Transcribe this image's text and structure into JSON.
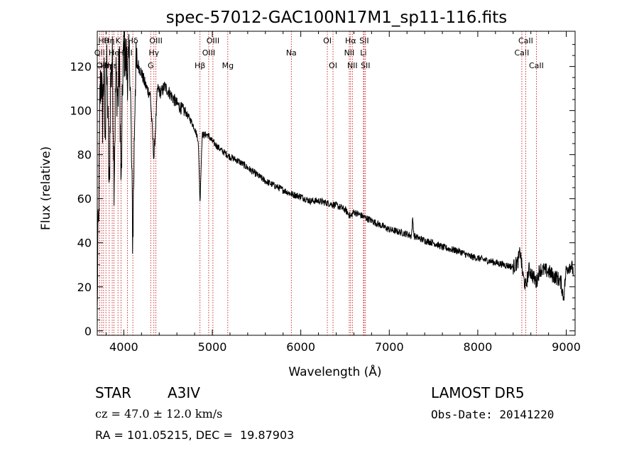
{
  "chart_data": {
    "type": "line",
    "title": "spec-57012-GAC100N17M1_sp11-116.fits",
    "xlabel": "Wavelength (Å)",
    "ylabel": "Flux (relative)",
    "xlim": [
      3700,
      9100
    ],
    "ylim": [
      -2,
      136
    ],
    "xticks": [
      4000,
      5000,
      6000,
      7000,
      8000,
      9000
    ],
    "yticks": [
      0,
      20,
      40,
      60,
      80,
      100,
      120
    ],
    "line_color": "#000000",
    "marker_color": "#c00000",
    "spectrum_anchors": [
      [
        3700,
        5
      ],
      [
        3705,
        36
      ],
      [
        3715,
        48
      ],
      [
        3730,
        105
      ],
      [
        3745,
        118
      ],
      [
        3760,
        96
      ],
      [
        3775,
        120
      ],
      [
        3790,
        82
      ],
      [
        3800,
        128
      ],
      [
        3820,
        100
      ],
      [
        3835,
        58
      ],
      [
        3850,
        112
      ],
      [
        3870,
        124
      ],
      [
        3890,
        68
      ],
      [
        3910,
        116
      ],
      [
        3935,
        105
      ],
      [
        3950,
        124
      ],
      [
        3970,
        62
      ],
      [
        3990,
        122
      ],
      [
        4010,
        128
      ],
      [
        4040,
        118
      ],
      [
        4070,
        123
      ],
      [
        4101,
        40
      ],
      [
        4130,
        117
      ],
      [
        4160,
        121
      ],
      [
        4200,
        117
      ],
      [
        4250,
        111
      ],
      [
        4300,
        107
      ],
      [
        4340,
        78
      ],
      [
        4380,
        110
      ],
      [
        4420,
        108
      ],
      [
        4460,
        111
      ],
      [
        4500,
        109
      ],
      [
        4550,
        106
      ],
      [
        4600,
        103
      ],
      [
        4650,
        101
      ],
      [
        4700,
        99
      ],
      [
        4750,
        96
      ],
      [
        4800,
        92
      ],
      [
        4840,
        87
      ],
      [
        4855,
        68
      ],
      [
        4861,
        58
      ],
      [
        4870,
        70
      ],
      [
        4885,
        89
      ],
      [
        4950,
        89
      ],
      [
        5000,
        86
      ],
      [
        5100,
        82
      ],
      [
        5200,
        79
      ],
      [
        5300,
        77
      ],
      [
        5400,
        74
      ],
      [
        5500,
        71
      ],
      [
        5600,
        68
      ],
      [
        5700,
        66
      ],
      [
        5800,
        64
      ],
      [
        5900,
        62
      ],
      [
        6000,
        61
      ],
      [
        6100,
        59
      ],
      [
        6200,
        59
      ],
      [
        6300,
        58
      ],
      [
        6400,
        57
      ],
      [
        6500,
        55
      ],
      [
        6563,
        52
      ],
      [
        6600,
        54
      ],
      [
        6700,
        52
      ],
      [
        6800,
        50
      ],
      [
        6900,
        48
      ],
      [
        7000,
        46
      ],
      [
        7100,
        45
      ],
      [
        7200,
        44
      ],
      [
        7250,
        43
      ],
      [
        7265,
        51
      ],
      [
        7280,
        43
      ],
      [
        7400,
        41
      ],
      [
        7500,
        40
      ],
      [
        7600,
        38
      ],
      [
        7700,
        37
      ],
      [
        7800,
        36
      ],
      [
        7900,
        34
      ],
      [
        8000,
        33
      ],
      [
        8100,
        32
      ],
      [
        8200,
        31
      ],
      [
        8300,
        30
      ],
      [
        8400,
        29
      ],
      [
        8450,
        31
      ],
      [
        8480,
        36
      ],
      [
        8510,
        25
      ],
      [
        8542,
        20
      ],
      [
        8580,
        28
      ],
      [
        8662,
        22
      ],
      [
        8700,
        28
      ],
      [
        8800,
        27
      ],
      [
        8850,
        25
      ],
      [
        8900,
        24
      ],
      [
        8940,
        22
      ],
      [
        8970,
        15
      ],
      [
        9000,
        28
      ],
      [
        9050,
        30
      ],
      [
        9100,
        25
      ]
    ],
    "line_markers": [
      {
        "wavelength": 3727,
        "row": 1,
        "label": "OII"
      },
      {
        "wavelength": 3750,
        "row": 2,
        "label": "OII"
      },
      {
        "wavelength": 3771,
        "row": 0,
        "label": "Hθ"
      },
      {
        "wavelength": 3798,
        "row": 2,
        "label": "Hη"
      },
      {
        "wavelength": 3835,
        "row": 0,
        "label": "Hη"
      },
      {
        "wavelength": 3869,
        "row": 2,
        "label": "Hε"
      },
      {
        "wavelength": 3889,
        "row": 1,
        "label": "He"
      },
      {
        "wavelength": 3934,
        "row": 0,
        "label": "K"
      },
      {
        "wavelength": 3969,
        "row": 1,
        "label": "H"
      },
      {
        "wavelength": 4040,
        "row": 1,
        "label": "NII"
      },
      {
        "wavelength": 4102,
        "row": 0,
        "label": "Hδ"
      },
      {
        "wavelength": 4304,
        "row": 2,
        "label": "G"
      },
      {
        "wavelength": 4340,
        "row": 1,
        "label": "Hγ"
      },
      {
        "wavelength": 4363,
        "row": 0,
        "label": "OIII"
      },
      {
        "wavelength": 4861,
        "row": 2,
        "label": "Hβ"
      },
      {
        "wavelength": 4959,
        "row": 1,
        "label": "OIII"
      },
      {
        "wavelength": 5007,
        "row": 0,
        "label": "OIII"
      },
      {
        "wavelength": 5175,
        "row": 2,
        "label": "Mg"
      },
      {
        "wavelength": 5893,
        "row": 1,
        "label": "Na"
      },
      {
        "wavelength": 6300,
        "row": 0,
        "label": "OI"
      },
      {
        "wavelength": 6364,
        "row": 2,
        "label": "OI"
      },
      {
        "wavelength": 6548,
        "row": 1,
        "label": "NII"
      },
      {
        "wavelength": 6563,
        "row": 0,
        "label": "Hα"
      },
      {
        "wavelength": 6583,
        "row": 2,
        "label": "NII"
      },
      {
        "wavelength": 6708,
        "row": 1,
        "label": "Li"
      },
      {
        "wavelength": 6716,
        "row": 0,
        "label": "SII"
      },
      {
        "wavelength": 6731,
        "row": 2,
        "label": "SII"
      },
      {
        "wavelength": 8498,
        "row": 1,
        "label": "CaII"
      },
      {
        "wavelength": 8542,
        "row": 0,
        "label": "CaII"
      },
      {
        "wavelength": 8662,
        "row": 2,
        "label": "CaII"
      }
    ]
  },
  "info": {
    "object_class": "STAR",
    "subclass": "A3IV",
    "survey": "LAMOST DR5",
    "redshift": "cz = 47.0 ± 12.0 km/s",
    "obs_date": "Obs-Date: 20141220",
    "coords": "RA = 101.05215, DEC =  19.87903"
  }
}
